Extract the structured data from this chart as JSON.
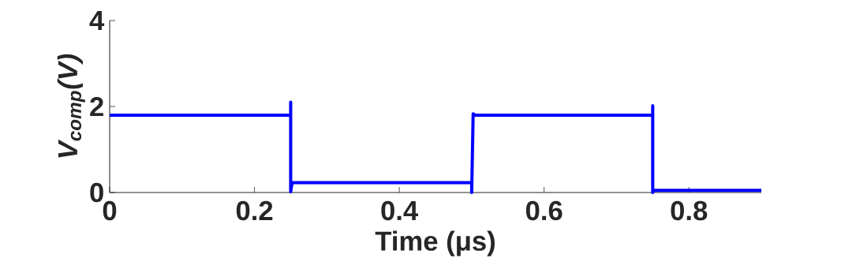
{
  "chart_data": {
    "type": "line",
    "xlabel": "Time (μs)",
    "ylabel": "V$_{comp}$(V)",
    "x": [
      0,
      0.25,
      0.25,
      0.25,
      0.252,
      0.5,
      0.5,
      0.502,
      0.505,
      0.75,
      0.75,
      0.75,
      0.752,
      0.9
    ],
    "values": [
      1.8,
      1.8,
      2.1,
      0.02,
      0.23,
      0.23,
      0,
      1.83,
      1.8,
      1.8,
      2.02,
      0,
      0.05,
      0.05
    ],
    "color": "#0000ff",
    "xlim": [
      0,
      0.9
    ],
    "ylim": [
      0,
      4
    ],
    "xticks": [
      0,
      0.2,
      0.4,
      0.6,
      0.8
    ],
    "yticks": [
      0,
      2,
      4
    ]
  }
}
